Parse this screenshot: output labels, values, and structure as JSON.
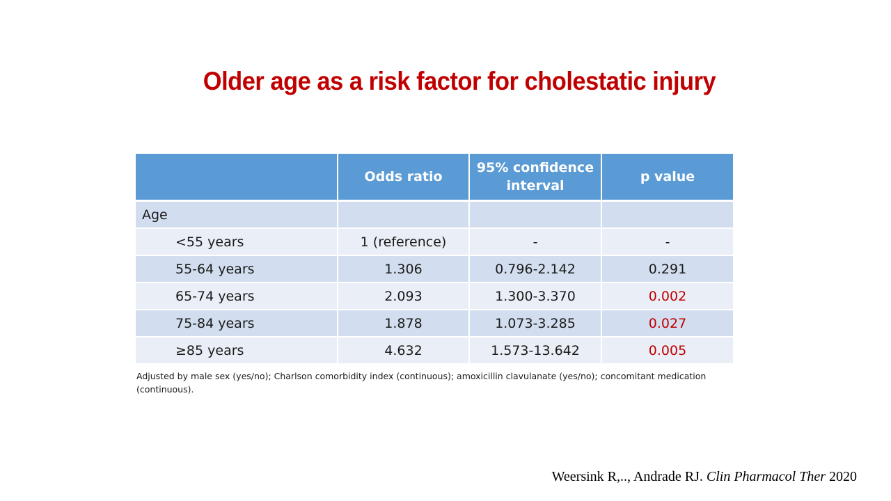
{
  "title": "Older age as a risk factor for cholestatic injury",
  "table": {
    "headers": [
      "",
      "Odds ratio",
      "95% confidence interval",
      "p value"
    ],
    "group_label": "Age",
    "rows": [
      {
        "label": "<55 years",
        "odds_ratio": "1 (reference)",
        "ci": "-",
        "p": "-",
        "significant": false
      },
      {
        "label": "55-64 years",
        "odds_ratio": "1.306",
        "ci": "0.796-2.142",
        "p": "0.291",
        "significant": false
      },
      {
        "label": "65-74 years",
        "odds_ratio": "2.093",
        "ci": "1.300-3.370",
        "p": "0.002",
        "significant": true
      },
      {
        "label": "75-84 years",
        "odds_ratio": "1.878",
        "ci": "1.073-3.285",
        "p": "0.027",
        "significant": true
      },
      {
        "label": "≥85 years",
        "odds_ratio": "4.632",
        "ci": "1.573-13.642",
        "p": "0.005",
        "significant": true
      }
    ]
  },
  "footnote": "Adjusted by male sex (yes/no); Charlson comorbidity  index (continuous);  amoxicillin clavulanate (yes/no); concomitant  medication (continuous).",
  "citation": {
    "authors": "Weersink  R,.., Andrade  RJ.",
    "journal": "Clin Pharmacol Ther",
    "year": "2020"
  },
  "colors": {
    "title": "#c00000",
    "header_bg": "#5b9bd5",
    "row_dark": "#d2deef",
    "row_light": "#eaeff7",
    "significant": "#c00000"
  }
}
